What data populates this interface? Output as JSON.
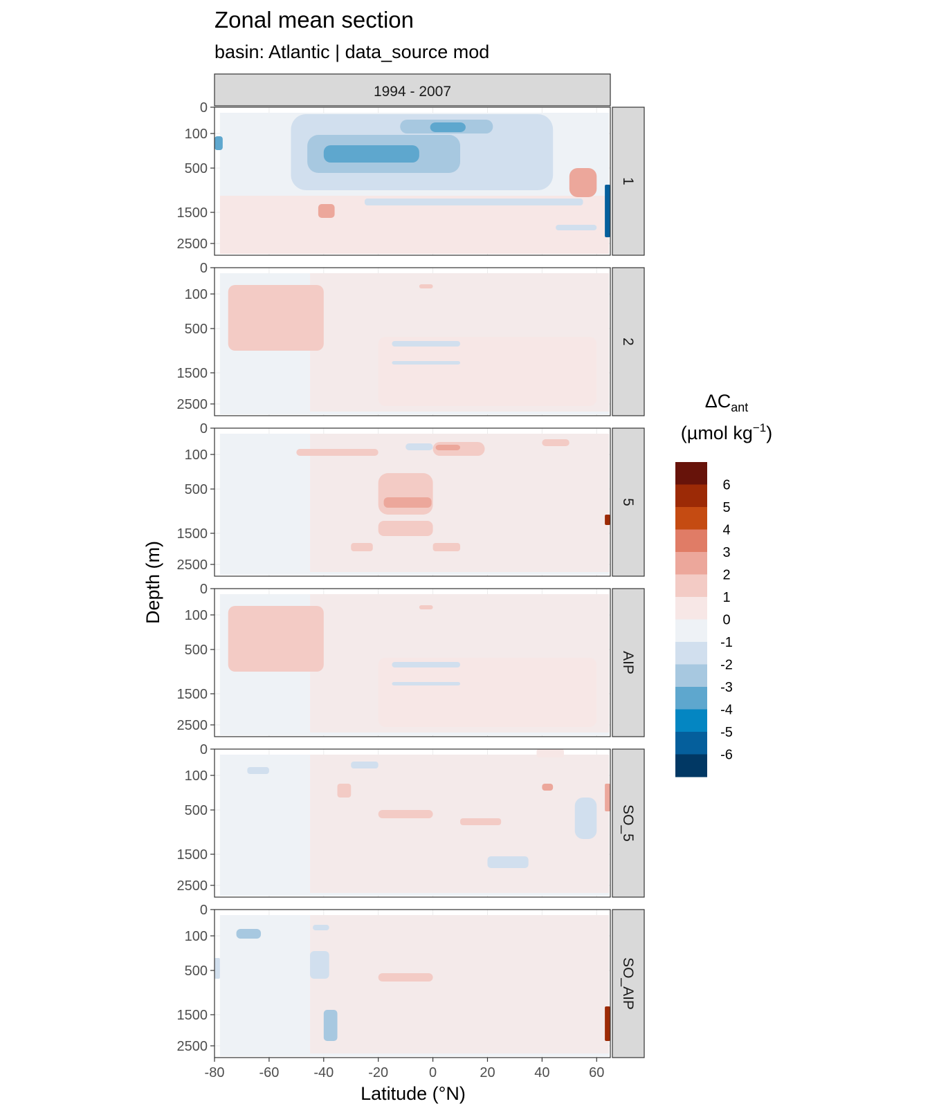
{
  "chart_data": {
    "type": "heatmap",
    "title": "Zonal mean section",
    "subtitle": "basin: Atlantic | data_source mod",
    "xlabel": "Latitude (°N)",
    "ylabel": "Depth (m)",
    "xlim": [
      -80,
      65
    ],
    "x_ticks": [
      -80,
      -60,
      -40,
      -20,
      0,
      20,
      40,
      60
    ],
    "y_ticks": [
      0,
      100,
      500,
      1500,
      2500
    ],
    "column_facet": "1994 - 2007",
    "row_facets": [
      "1",
      "2",
      "5",
      "AIP",
      "SO_5",
      "SO_AIP"
    ],
    "legend": {
      "title_main": "ΔC",
      "title_sub": "ant",
      "unit_prefix": "(µmol kg",
      "unit_sup": "−1",
      "unit_suffix": ")",
      "placement": "right",
      "labels": [
        "6",
        "5",
        "4",
        "3",
        "2",
        "1",
        "0",
        "-1",
        "-2",
        "-3",
        "-4",
        "-5",
        "-6"
      ],
      "colors": [
        "#67130a",
        "#9c2a06",
        "#c54b12",
        "#e07c66",
        "#eca79b",
        "#f3cbc5",
        "#f7e7e6",
        "#eef2f6",
        "#d1dfee",
        "#a7c8e0",
        "#5ea7ce",
        "#0486c2",
        "#055f9c",
        "#013864"
      ]
    },
    "grid": true
  }
}
